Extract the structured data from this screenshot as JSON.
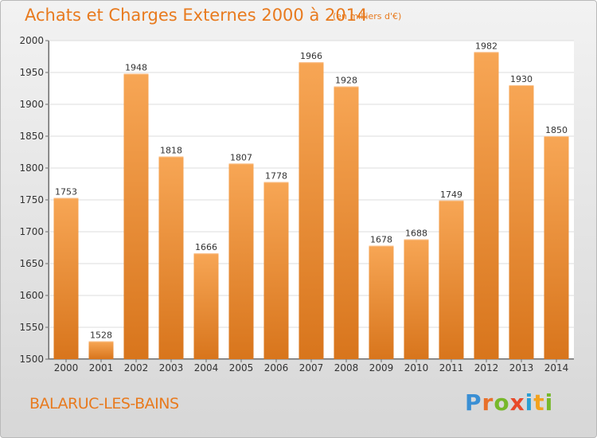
{
  "header": {
    "title": "Achats et Charges Externes 2000 à 2014",
    "unit": "(en milliers d'€)"
  },
  "footer": {
    "commune": "BALARUC-LES-BAINS",
    "logo": "Proxiti"
  },
  "colors": {
    "accent": "#e87a1e",
    "bar_top": "#f7a655",
    "bar_bottom": "#d8751c"
  },
  "chart_data": {
    "type": "bar",
    "title": "Achats et Charges Externes 2000 à 2014",
    "subtitle": "(en milliers d'€)",
    "categories": [
      "2000",
      "2001",
      "2002",
      "2003",
      "2004",
      "2005",
      "2006",
      "2007",
      "2008",
      "2009",
      "2010",
      "2011",
      "2012",
      "2013",
      "2014"
    ],
    "values": [
      1753,
      1528,
      1948,
      1818,
      1666,
      1807,
      1778,
      1966,
      1928,
      1678,
      1688,
      1749,
      1982,
      1930,
      1850
    ],
    "ylim": [
      1500,
      2000
    ],
    "yticks": [
      1500,
      1550,
      1600,
      1650,
      1700,
      1750,
      1800,
      1850,
      1900,
      1950,
      2000
    ],
    "grid": true,
    "legend": "none"
  }
}
